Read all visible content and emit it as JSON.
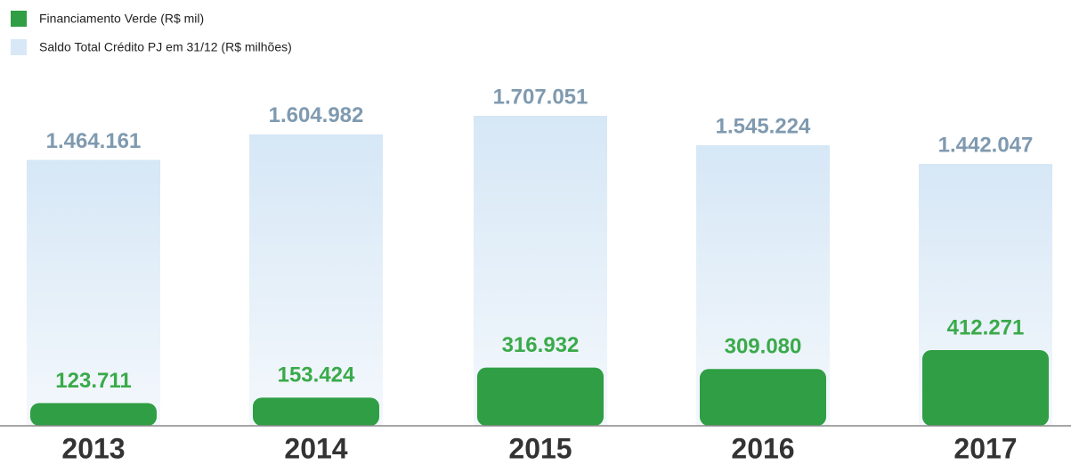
{
  "chart_data": {
    "type": "bar",
    "categories": [
      "2013",
      "2014",
      "2015",
      "2016",
      "2017"
    ],
    "series": [
      {
        "name": "Financiamento Verde (R$ mil)",
        "color": "#2f9e44",
        "values": [
          123711,
          153424,
          316932,
          309080,
          412271
        ],
        "value_labels": [
          "123.711",
          "153.424",
          "316.932",
          "309.080",
          "412.271"
        ]
      },
      {
        "name": "Saldo Total Crédito PJ em 31/12 (R$ milhões)",
        "color": "#d8e8f6",
        "values": [
          1464161,
          1604982,
          1707051,
          1545224,
          1442047
        ],
        "value_labels": [
          "1.464.161",
          "1.604.982",
          "1.707.051",
          "1.545.224",
          "1.442.047"
        ]
      }
    ]
  }
}
